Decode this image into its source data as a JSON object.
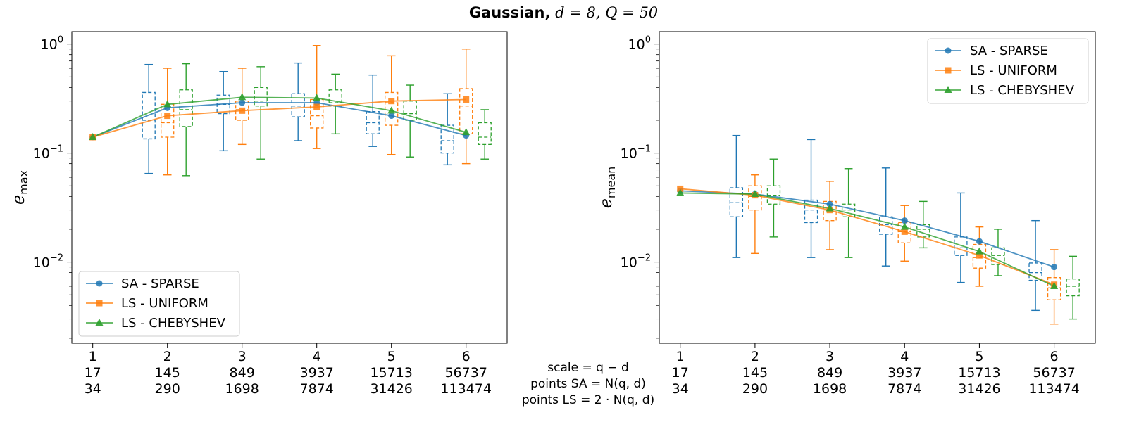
{
  "figure": {
    "title_bold": "Gaussian,",
    "title_d": "d = 8,",
    "title_Q": "Q = 50"
  },
  "x_rows": {
    "scale": [
      "1",
      "2",
      "3",
      "4",
      "5",
      "6"
    ],
    "points_sa": [
      "17",
      "145",
      "849",
      "3937",
      "15713",
      "56737"
    ],
    "points_ls": [
      "34",
      "290",
      "1698",
      "7874",
      "31426",
      "113474"
    ]
  },
  "center_labels": {
    "line1": "scale = q − d",
    "line2": "points SA = N(q, d)",
    "line3": "points LS = 2 · N(q, d)"
  },
  "chart_data": [
    {
      "type": "line",
      "panel": "left",
      "ylabel": "e_max",
      "yscale": "log",
      "ylim": [
        0.0018,
        1.3
      ],
      "yticks": [
        "10^0",
        "10^-1",
        "10^-2"
      ],
      "x": [
        1,
        2,
        3,
        4,
        5,
        6
      ],
      "xlim": [
        0.72,
        6.55
      ],
      "legend_position": "lower-left",
      "series": [
        {
          "name": "SA - SPARSE",
          "color": "#1f77b4",
          "marker": "circle",
          "values": [
            0.14,
            0.26,
            0.29,
            0.29,
            0.22,
            0.145
          ],
          "box_q1": [
            null,
            0.135,
            0.23,
            0.215,
            0.15,
            0.1
          ],
          "box_q3": [
            null,
            0.36,
            0.34,
            0.35,
            0.24,
            0.18
          ],
          "box_median": [
            null,
            0.2,
            0.28,
            0.27,
            0.19,
            0.13
          ],
          "whisker_low": [
            null,
            0.065,
            0.105,
            0.13,
            0.115,
            0.078
          ],
          "whisker_high": [
            null,
            0.65,
            0.56,
            0.67,
            0.52,
            0.35
          ]
        },
        {
          "name": "LS - UNIFORM",
          "color": "#ff7f0e",
          "marker": "square",
          "values": [
            0.14,
            0.22,
            0.245,
            0.265,
            0.3,
            0.31
          ],
          "box_q1": [
            null,
            0.14,
            0.2,
            0.17,
            0.18,
            0.15
          ],
          "box_q3": [
            null,
            0.28,
            0.3,
            0.31,
            0.36,
            0.39
          ],
          "box_median": [
            null,
            0.19,
            0.25,
            0.22,
            0.29,
            0.27
          ],
          "whisker_low": [
            null,
            0.063,
            0.12,
            0.11,
            0.097,
            0.08
          ],
          "whisker_high": [
            null,
            0.6,
            0.6,
            0.97,
            0.78,
            0.9
          ]
        },
        {
          "name": "LS - CHEBYSHEV",
          "color": "#2ca02c",
          "marker": "triangle",
          "values": [
            0.14,
            0.28,
            0.325,
            0.32,
            0.245,
            0.155
          ],
          "box_q1": [
            null,
            0.175,
            0.27,
            0.27,
            0.2,
            0.12
          ],
          "box_q3": [
            null,
            0.38,
            0.4,
            0.38,
            0.3,
            0.19
          ],
          "box_median": [
            null,
            0.25,
            0.3,
            0.29,
            0.23,
            0.14
          ],
          "whisker_low": [
            null,
            0.062,
            0.088,
            0.15,
            0.092,
            0.088
          ],
          "whisker_high": [
            null,
            0.66,
            0.62,
            0.53,
            0.42,
            0.25
          ]
        }
      ]
    },
    {
      "type": "line",
      "panel": "right",
      "ylabel": "e_mean",
      "yscale": "log",
      "ylim": [
        0.0018,
        1.3
      ],
      "yticks": [
        "10^0",
        "10^-1",
        "10^-2"
      ],
      "x": [
        1,
        2,
        3,
        4,
        5,
        6
      ],
      "xlim": [
        0.72,
        6.55
      ],
      "legend_position": "upper-right",
      "series": [
        {
          "name": "SA - SPARSE",
          "color": "#1f77b4",
          "marker": "circle",
          "values": [
            0.045,
            0.042,
            0.034,
            0.024,
            0.0155,
            0.009
          ],
          "box_q1": [
            null,
            0.026,
            0.023,
            0.018,
            0.0115,
            0.0068
          ],
          "box_q3": [
            null,
            0.048,
            0.037,
            0.026,
            0.017,
            0.0098
          ],
          "box_median": [
            null,
            0.035,
            0.03,
            0.022,
            0.0135,
            0.008
          ],
          "whisker_low": [
            null,
            0.011,
            0.011,
            0.0092,
            0.0065,
            0.0036
          ],
          "whisker_high": [
            null,
            0.145,
            0.133,
            0.073,
            0.043,
            0.024
          ]
        },
        {
          "name": "LS - UNIFORM",
          "color": "#ff7f0e",
          "marker": "square",
          "values": [
            0.047,
            0.041,
            0.03,
            0.019,
            0.0115,
            0.0062
          ],
          "box_q1": [
            null,
            0.03,
            0.024,
            0.015,
            0.0088,
            0.0045
          ],
          "box_q3": [
            null,
            0.05,
            0.036,
            0.023,
            0.0145,
            0.0072
          ],
          "box_median": [
            null,
            0.04,
            0.03,
            0.019,
            0.011,
            0.0058
          ],
          "whisker_low": [
            null,
            0.012,
            0.013,
            0.0102,
            0.006,
            0.0027
          ],
          "whisker_high": [
            null,
            0.063,
            0.055,
            0.033,
            0.021,
            0.013
          ]
        },
        {
          "name": "LS - CHEBYSHEV",
          "color": "#2ca02c",
          "marker": "triangle",
          "values": [
            0.043,
            0.042,
            0.031,
            0.021,
            0.0125,
            0.006
          ],
          "box_q1": [
            null,
            0.034,
            0.026,
            0.017,
            0.0095,
            0.0049
          ],
          "box_q3": [
            null,
            0.05,
            0.034,
            0.022,
            0.0135,
            0.007
          ],
          "box_median": [
            null,
            0.041,
            0.03,
            0.02,
            0.0115,
            0.006
          ],
          "whisker_low": [
            null,
            0.017,
            0.011,
            0.0135,
            0.0075,
            0.003
          ],
          "whisker_high": [
            null,
            0.088,
            0.072,
            0.036,
            0.02,
            0.0113
          ]
        }
      ]
    }
  ]
}
